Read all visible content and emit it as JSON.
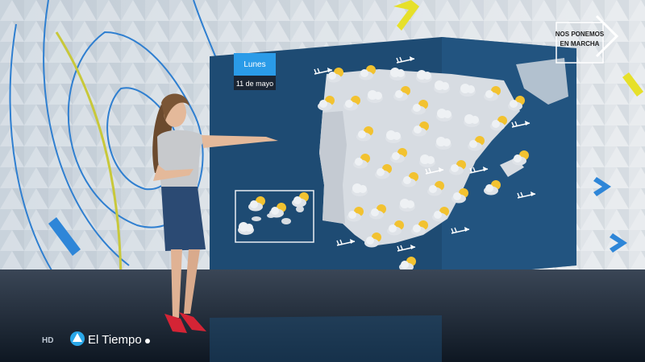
{
  "date_card": {
    "day": "Lunes",
    "date": "11 de mayo"
  },
  "badge": {
    "line1": "NOS PONEMOS",
    "line2": "EN MARCHA"
  },
  "footer": {
    "quality": "HD",
    "program": "El Tiempo"
  }
}
